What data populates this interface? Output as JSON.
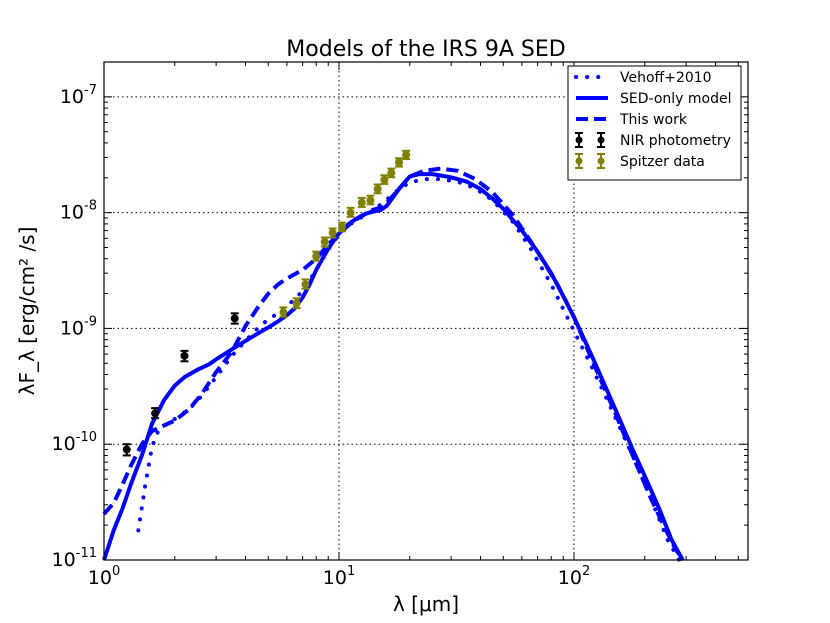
{
  "chart_data": {
    "type": "line",
    "title": "Models of the IRS 9A SED",
    "xlabel": "λ [μm]",
    "ylabel": "λF_λ [erg/cm² /s]",
    "xscale": "log",
    "yscale": "log",
    "xlim": [
      1,
      550
    ],
    "ylim": [
      1e-11,
      2e-07
    ],
    "grid": true,
    "legend_position": "top-right",
    "x_ticks": [
      {
        "value": 1,
        "base": "10",
        "exp": "0"
      },
      {
        "value": 10,
        "base": "10",
        "exp": "1"
      },
      {
        "value": 100,
        "base": "10",
        "exp": "2"
      }
    ],
    "y_ticks": [
      {
        "value": 1e-11,
        "base": "10",
        "exp": "-11"
      },
      {
        "value": 1e-10,
        "base": "10",
        "exp": "-10"
      },
      {
        "value": 1e-09,
        "base": "10",
        "exp": "-9"
      },
      {
        "value": 1e-08,
        "base": "10",
        "exp": "-8"
      },
      {
        "value": 1e-07,
        "base": "10",
        "exp": "-7"
      }
    ],
    "colors": {
      "model": "#0000ff",
      "nir": "#000000",
      "spitzer": "#808000",
      "grid": "#000000"
    },
    "series": [
      {
        "name": "Vehoff+2010",
        "style": "dotted",
        "points": [
          [
            1.4,
            1.8e-11
          ],
          [
            1.5,
            4.5e-11
          ],
          [
            1.6,
            9.5e-11
          ],
          [
            1.7,
            1.3e-10
          ],
          [
            1.85,
            1.5e-10
          ],
          [
            2.0,
            1.65e-10
          ],
          [
            2.3,
            2e-10
          ],
          [
            2.6,
            2.6e-10
          ],
          [
            3.0,
            3.8e-10
          ],
          [
            3.5,
            5.8e-10
          ],
          [
            4.0,
            7.8e-10
          ],
          [
            4.5,
            1e-09
          ],
          [
            5.0,
            1.2e-09
          ],
          [
            5.5,
            1.35e-09
          ],
          [
            6.0,
            1.55e-09
          ],
          [
            7.0,
            2.1e-09
          ],
          [
            8.0,
            3.2e-09
          ],
          [
            9.0,
            4.8e-09
          ],
          [
            10.0,
            6.5e-09
          ],
          [
            11.0,
            7.8e-09
          ],
          [
            12.0,
            8.7e-09
          ],
          [
            13.0,
            9.6e-09
          ],
          [
            14.0,
            1.05e-08
          ],
          [
            16.0,
            1.3e-08
          ],
          [
            18.0,
            1.6e-08
          ],
          [
            20.0,
            1.82e-08
          ],
          [
            23.0,
            1.95e-08
          ],
          [
            27.0,
            1.95e-08
          ],
          [
            32.0,
            1.85e-08
          ],
          [
            38.0,
            1.62e-08
          ],
          [
            45.0,
            1.28e-08
          ],
          [
            55.0,
            8.3e-09
          ],
          [
            65.0,
            5e-09
          ],
          [
            80.0,
            2.4e-09
          ],
          [
            100.0,
            9.5e-10
          ],
          [
            120.0,
            4.5e-10
          ],
          [
            150.0,
            1.7e-10
          ],
          [
            180.0,
            7.5e-11
          ],
          [
            210.0,
            3.6e-11
          ],
          [
            250.0,
            1.5e-11
          ],
          [
            280.0,
            1e-11
          ]
        ]
      },
      {
        "name": "SED-only model",
        "style": "solid",
        "points": [
          [
            1.0,
            1e-11
          ],
          [
            1.1,
            1.8e-11
          ],
          [
            1.2,
            2.8e-11
          ],
          [
            1.3,
            4.5e-11
          ],
          [
            1.45,
            8e-11
          ],
          [
            1.6,
            1.5e-10
          ],
          [
            1.8,
            2.4e-10
          ],
          [
            2.0,
            3.2e-10
          ],
          [
            2.2,
            3.8e-10
          ],
          [
            2.5,
            4.4e-10
          ],
          [
            2.8,
            4.9e-10
          ],
          [
            3.0,
            5.4e-10
          ],
          [
            3.5,
            6.6e-10
          ],
          [
            4.0,
            7.8e-10
          ],
          [
            4.5,
            9e-10
          ],
          [
            5.0,
            1.02e-09
          ],
          [
            5.5,
            1.15e-09
          ],
          [
            6.0,
            1.3e-09
          ],
          [
            6.5,
            1.5e-09
          ],
          [
            7.0,
            1.85e-09
          ],
          [
            7.5,
            2.4e-09
          ],
          [
            8.0,
            3.2e-09
          ],
          [
            9.0,
            4.9e-09
          ],
          [
            10.0,
            6.6e-09
          ],
          [
            11.0,
            8e-09
          ],
          [
            12.0,
            9e-09
          ],
          [
            13.0,
            9.8e-09
          ],
          [
            14.0,
            1.02e-08
          ],
          [
            15.0,
            1.05e-08
          ],
          [
            16.0,
            1.15e-08
          ],
          [
            18.0,
            1.6e-08
          ],
          [
            20.0,
            2.05e-08
          ],
          [
            22.0,
            2.15e-08
          ],
          [
            25.0,
            2.15e-08
          ],
          [
            30.0,
            2.02e-08
          ],
          [
            35.0,
            1.85e-08
          ],
          [
            40.0,
            1.6e-08
          ],
          [
            45.0,
            1.32e-08
          ],
          [
            50.0,
            1.08e-08
          ],
          [
            60.0,
            7e-09
          ],
          [
            70.0,
            4.6e-09
          ],
          [
            80.0,
            3e-09
          ],
          [
            90.0,
            1.9e-09
          ],
          [
            100.0,
            1.25e-09
          ],
          [
            120.0,
            5.6e-10
          ],
          [
            150.0,
            2e-10
          ],
          [
            180.0,
            8.5e-11
          ],
          [
            200.0,
            5.3e-11
          ],
          [
            230.0,
            2.8e-11
          ],
          [
            260.0,
            1.5e-11
          ],
          [
            290.0,
            1e-11
          ]
        ]
      },
      {
        "name": "This work",
        "style": "dashed",
        "points": [
          [
            1.0,
            2.5e-11
          ],
          [
            1.1,
            3.1e-11
          ],
          [
            1.2,
            4.5e-11
          ],
          [
            1.3,
            6.5e-11
          ],
          [
            1.45,
            1e-10
          ],
          [
            1.6,
            1.3e-10
          ],
          [
            1.8,
            1.45e-10
          ],
          [
            2.0,
            1.6e-10
          ],
          [
            2.3,
            2e-10
          ],
          [
            2.6,
            2.7e-10
          ],
          [
            3.0,
            4.2e-10
          ],
          [
            3.5,
            6.3e-10
          ],
          [
            4.0,
            1.05e-09
          ],
          [
            4.5,
            1.5e-09
          ],
          [
            5.0,
            2e-09
          ],
          [
            5.5,
            2.4e-09
          ],
          [
            6.0,
            2.7e-09
          ],
          [
            7.0,
            3.2e-09
          ],
          [
            8.0,
            4e-09
          ],
          [
            9.0,
            5.3e-09
          ],
          [
            10.0,
            6.6e-09
          ],
          [
            11.0,
            7.8e-09
          ],
          [
            12.0,
            8.9e-09
          ],
          [
            13.0,
            9.8e-09
          ],
          [
            14.0,
            1.06e-08
          ],
          [
            15.0,
            1.1e-08
          ],
          [
            16.0,
            1.22e-08
          ],
          [
            18.0,
            1.6e-08
          ],
          [
            20.0,
            2.05e-08
          ],
          [
            23.0,
            2.3e-08
          ],
          [
            27.0,
            2.4e-08
          ],
          [
            32.0,
            2.3e-08
          ],
          [
            38.0,
            1.95e-08
          ],
          [
            45.0,
            1.5e-08
          ],
          [
            55.0,
            9.5e-09
          ],
          [
            70.0,
            4.6e-09
          ],
          [
            85.0,
            2.4e-09
          ],
          [
            100.0,
            1.25e-09
          ],
          [
            120.0,
            5.2e-10
          ],
          [
            150.0,
            1.85e-10
          ],
          [
            180.0,
            7.5e-11
          ],
          [
            210.0,
            3.6e-11
          ],
          [
            240.0,
            2e-11
          ],
          [
            270.0,
            1.25e-11
          ],
          [
            290.0,
            1e-11
          ]
        ]
      }
    ],
    "errorbar_series": [
      {
        "name": "NIR photometry",
        "points": [
          {
            "x": 1.25,
            "y": 9e-11,
            "lo": 8e-11,
            "hi": 1e-10
          },
          {
            "x": 1.65,
            "y": 1.85e-10,
            "lo": 1.68e-10,
            "hi": 2.05e-10
          },
          {
            "x": 2.2,
            "y": 5.8e-10,
            "lo": 5.2e-10,
            "hi": 6.4e-10
          },
          {
            "x": 3.6,
            "y": 1.22e-09,
            "lo": 1.1e-09,
            "hi": 1.35e-09
          }
        ]
      },
      {
        "name": "Spitzer data",
        "points": [
          {
            "x": 5.8,
            "y": 1.38e-09,
            "lo": 1.26e-09,
            "hi": 1.52e-09
          },
          {
            "x": 6.6,
            "y": 1.65e-09,
            "lo": 1.5e-09,
            "hi": 1.82e-09
          },
          {
            "x": 7.2,
            "y": 2.4e-09,
            "lo": 2.2e-09,
            "hi": 2.65e-09
          },
          {
            "x": 8.0,
            "y": 4.2e-09,
            "lo": 3.85e-09,
            "hi": 4.6e-09
          },
          {
            "x": 8.7,
            "y": 5.6e-09,
            "lo": 5.1e-09,
            "hi": 6.1e-09
          },
          {
            "x": 9.4,
            "y": 6.7e-09,
            "lo": 6.1e-09,
            "hi": 7.3e-09
          },
          {
            "x": 10.3,
            "y": 7.5e-09,
            "lo": 6.9e-09,
            "hi": 8.2e-09
          },
          {
            "x": 11.2,
            "y": 1e-08,
            "lo": 9.2e-09,
            "hi": 1.1e-08
          },
          {
            "x": 12.5,
            "y": 1.22e-08,
            "lo": 1.12e-08,
            "hi": 1.34e-08
          },
          {
            "x": 13.6,
            "y": 1.28e-08,
            "lo": 1.18e-08,
            "hi": 1.4e-08
          },
          {
            "x": 14.6,
            "y": 1.6e-08,
            "lo": 1.47e-08,
            "hi": 1.75e-08
          },
          {
            "x": 15.6,
            "y": 1.92e-08,
            "lo": 1.77e-08,
            "hi": 2.1e-08
          },
          {
            "x": 16.7,
            "y": 2.2e-08,
            "lo": 2.02e-08,
            "hi": 2.4e-08
          },
          {
            "x": 18.0,
            "y": 2.72e-08,
            "lo": 2.5e-08,
            "hi": 2.95e-08
          },
          {
            "x": 19.3,
            "y": 3.15e-08,
            "lo": 2.9e-08,
            "hi": 3.42e-08
          }
        ]
      }
    ]
  }
}
